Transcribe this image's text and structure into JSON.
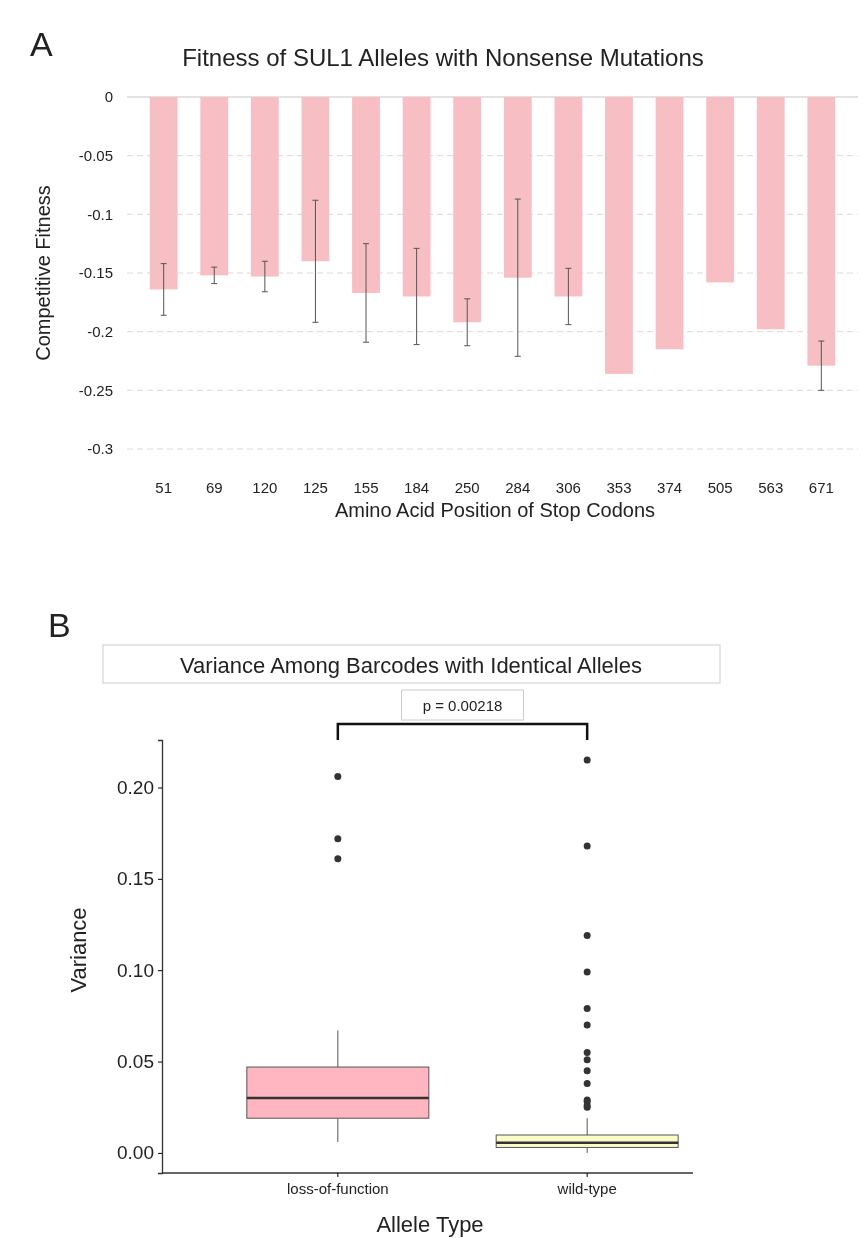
{
  "chart_data": [
    {
      "type": "bar",
      "title": "Fitness of SUL1 Alleles with Nonsense Mutations",
      "xlabel": "Amino Acid Position of Stop Codons",
      "ylabel": "Competitive Fitness",
      "annotations": [
        "A"
      ],
      "categories": [
        "51",
        "69",
        "120",
        "125",
        "155",
        "184",
        "250",
        "284",
        "306",
        "353",
        "374",
        "505",
        "563",
        "671"
      ],
      "values": [
        -0.164,
        -0.152,
        -0.153,
        -0.14,
        -0.167,
        -0.17,
        -0.192,
        -0.154,
        -0.17,
        -0.236,
        -0.215,
        -0.158,
        -0.198,
        -0.229
      ],
      "errors": [
        0.022,
        0.007,
        0.013,
        0.052,
        0.042,
        0.041,
        0.02,
        0.067,
        0.024,
        null,
        null,
        null,
        null,
        0.021
      ],
      "color": "#f7bfc3",
      "ylim": [
        -0.3,
        0
      ],
      "yticks": [
        0,
        -0.05,
        -0.1,
        -0.15,
        -0.2,
        -0.25,
        -0.3
      ],
      "grid": "y"
    },
    {
      "type": "box",
      "title": "Variance Among Barcodes with Identical Alleles",
      "xlabel": "Allele Type",
      "ylabel": "Variance",
      "annotations": [
        "B",
        "p = 0.00218"
      ],
      "categories": [
        "loss-of-function",
        "wild-type"
      ],
      "colors": [
        "#ffb6c1",
        "#fcfcc8"
      ],
      "boxes": [
        {
          "low": 0.006,
          "q1": 0.019,
          "median": 0.03,
          "q3": 0.047,
          "high": 0.067,
          "outliers": [
            0.206,
            0.172,
            0.161
          ]
        },
        {
          "low": 0.0,
          "q1": 0.003,
          "median": 0.0055,
          "q3": 0.0098,
          "high": 0.019,
          "outliers": [
            0.215,
            0.168,
            0.119,
            0.099,
            0.079,
            0.07,
            0.055,
            0.051,
            0.045,
            0.038,
            0.029,
            0.028,
            0.026,
            0.025
          ]
        }
      ],
      "ylim": [
        -0.011,
        0.226
      ],
      "yticks": [
        {
          "value": 0,
          "label": "0.00"
        },
        {
          "value": 0.05,
          "label": "0.05"
        },
        {
          "value": 0.1,
          "label": "0.10"
        },
        {
          "value": 0.15,
          "label": "0.15"
        },
        {
          "value": 0.2,
          "label": "0.20"
        }
      ],
      "grid": false
    }
  ]
}
